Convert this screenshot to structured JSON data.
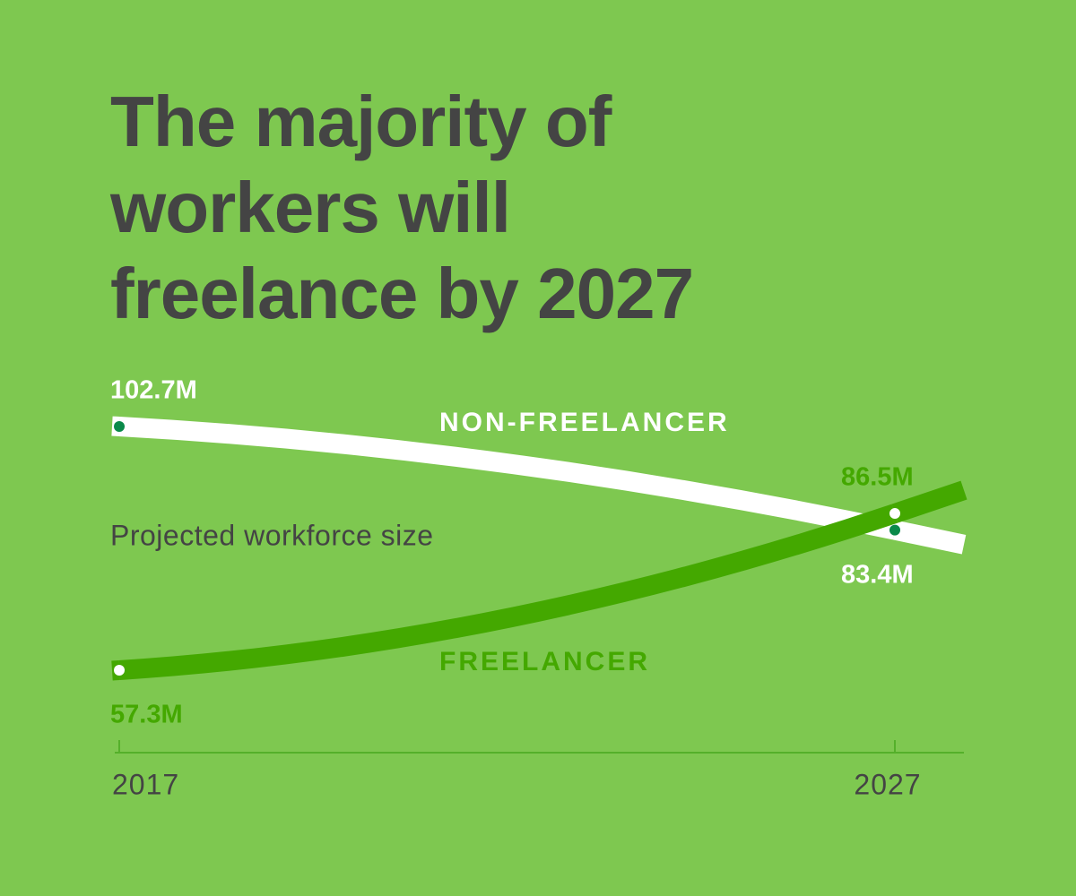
{
  "chart_data": {
    "type": "line",
    "title": "The majority of workers will freelance by 2027",
    "subtitle": "Projected workforce size",
    "x": [
      2017,
      2027
    ],
    "xticks": [
      2017,
      2027
    ],
    "series": [
      {
        "name": "NON-FREELANCER",
        "color": "#ffffff",
        "values": [
          102.7,
          83.4
        ],
        "value_labels": [
          "102.7M",
          "83.4M"
        ]
      },
      {
        "name": "FREELANCER",
        "color": "#44a800",
        "values": [
          57.3,
          86.5
        ],
        "value_labels": [
          "57.3M",
          "86.5M"
        ]
      }
    ]
  }
}
